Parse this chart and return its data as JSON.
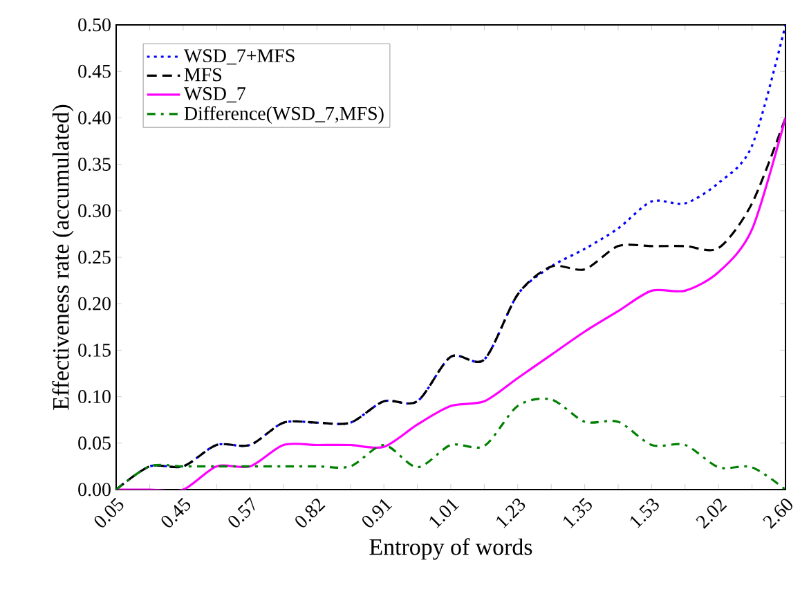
{
  "chart_data": {
    "type": "line",
    "xlabel": "Entropy of words",
    "ylabel": "Effectiveness rate (accumulated)",
    "categories": [
      "0.05",
      null,
      "0.45",
      null,
      "0.57",
      null,
      "0.82",
      null,
      "0.91",
      null,
      "1.01",
      null,
      "1.23",
      null,
      "1.35",
      null,
      "1.53",
      null,
      "2.02",
      null,
      "2.60"
    ],
    "series": [
      {
        "name": "WSD_7+MFS",
        "color": "#0000ff",
        "line_style": "dotted",
        "values": [
          0,
          0.025,
          0.025,
          0.048,
          0.048,
          0.072,
          0.072,
          0.072,
          0.095,
          0.095,
          0.143,
          0.14,
          0.21,
          0.24,
          0.259,
          0.281,
          0.31,
          0.308,
          0.33,
          0.37,
          0.5
        ]
      },
      {
        "name": "MFS",
        "color": "#000000",
        "line_style": "dashed",
        "values": [
          0,
          0.025,
          0.025,
          0.048,
          0.048,
          0.072,
          0.072,
          0.072,
          0.095,
          0.095,
          0.143,
          0.14,
          0.21,
          0.24,
          0.237,
          0.262,
          0.262,
          0.262,
          0.26,
          0.308,
          0.4
        ]
      },
      {
        "name": "WSD_7",
        "color": "#ff00ff",
        "line_style": "solid",
        "values": [
          0,
          0,
          0,
          0.025,
          0.025,
          0.048,
          0.048,
          0.048,
          0.046,
          0.07,
          0.09,
          0.095,
          0.12,
          0.145,
          0.17,
          0.192,
          0.214,
          0.214,
          0.234,
          0.28,
          0.4
        ]
      },
      {
        "name": "Difference(WSD_7,MFS)",
        "color": "#008000",
        "line_style": "dashdot",
        "values": [
          0,
          0.025,
          0.025,
          0.025,
          0.025,
          0.025,
          0.025,
          0.025,
          0.048,
          0.024,
          0.048,
          0.047,
          0.09,
          0.097,
          0.073,
          0.073,
          0.048,
          0.048,
          0.024,
          0.024,
          0
        ]
      }
    ],
    "ylim": [
      0,
      0.5
    ],
    "yticks": [
      {
        "value": 0,
        "label": "0.00"
      },
      0.05,
      {
        "value": 0.1,
        "label": "0.10"
      },
      0.15,
      {
        "value": 0.2,
        "label": "0.20"
      },
      0.25,
      {
        "value": 0.3,
        "label": "0.30"
      },
      0.35,
      {
        "value": 0.4,
        "label": "0.40"
      },
      0.45,
      {
        "value": 0.5,
        "label": "0.50"
      }
    ],
    "legend": "top left"
  }
}
